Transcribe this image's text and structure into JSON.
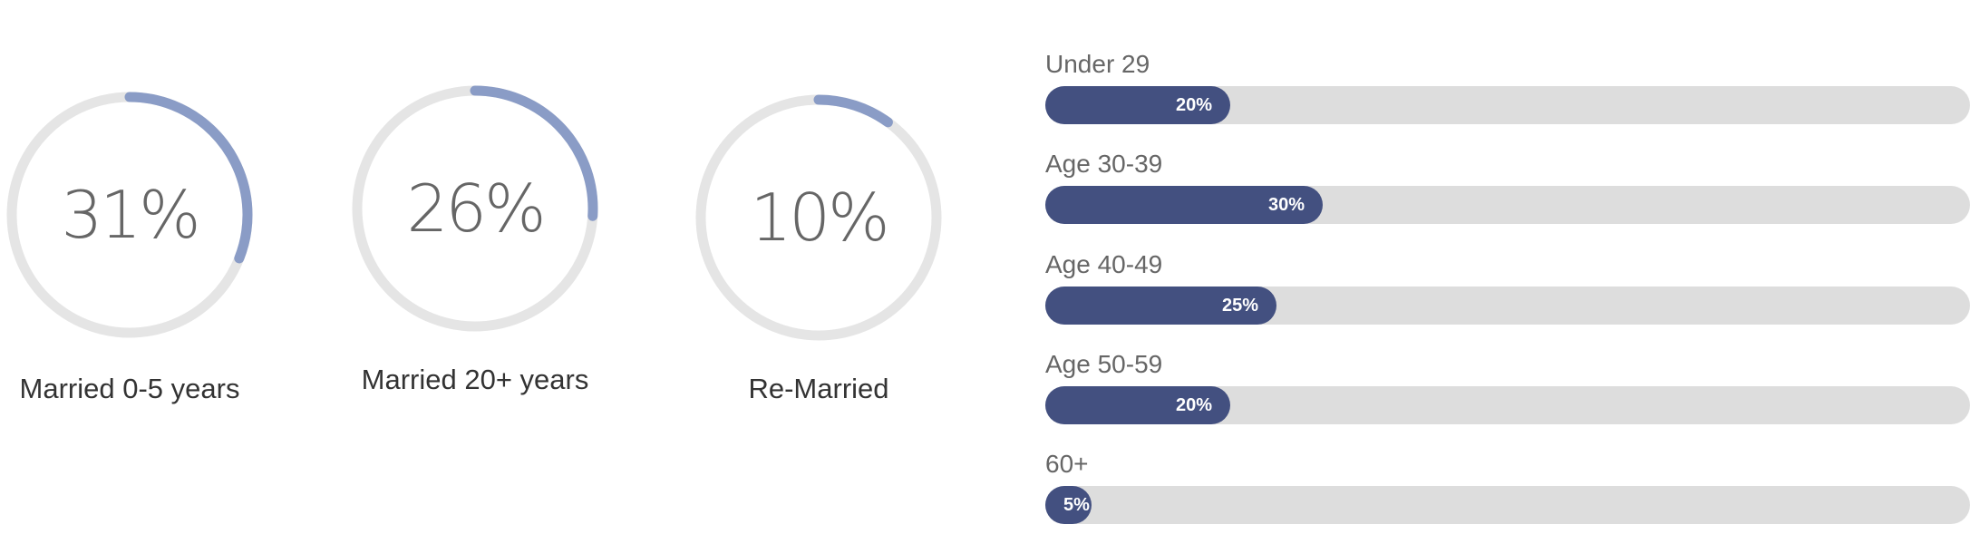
{
  "chart_data": [
    {
      "type": "donut",
      "items": [
        {
          "label": "Married 0-5 years",
          "value": 31,
          "display": "31%"
        },
        {
          "label": "Married 20+ years",
          "value": 26,
          "display": "26%"
        },
        {
          "label": "Re-Married",
          "value": 10,
          "display": "10%"
        }
      ],
      "max": 100,
      "colors": {
        "arc": "#8a9cc6",
        "track": "#e5e5e5",
        "text": "#666666"
      }
    },
    {
      "type": "bar",
      "orientation": "horizontal",
      "categories": [
        "Under 29",
        "Age 30-39",
        "Age 40-49",
        "Age 50-59",
        "60+"
      ],
      "values": [
        20,
        30,
        25,
        20,
        5
      ],
      "value_labels": [
        "20%",
        "30%",
        "25%",
        "20%",
        "5%"
      ],
      "xlim": [
        0,
        100
      ],
      "colors": {
        "fill": "#435080",
        "track": "#dddddd"
      }
    }
  ]
}
